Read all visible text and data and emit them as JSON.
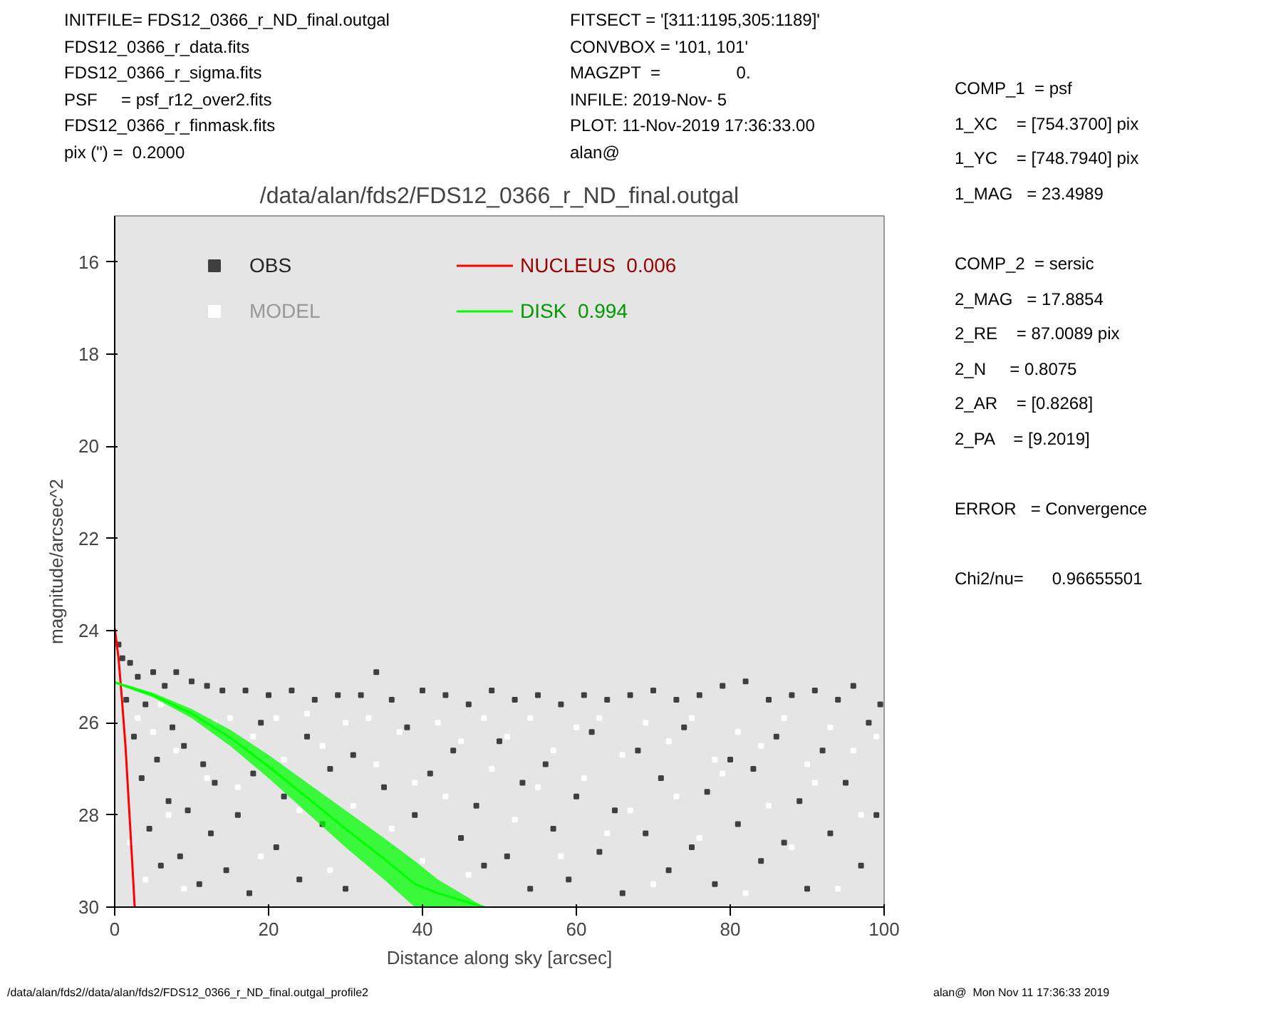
{
  "chart_data": {
    "type": "scatter",
    "title": "/data/alan/fds2/FDS12_0366_r_ND_final.outgal",
    "xlabel": "Distance along sky [arcsec]",
    "ylabel": "magnitude/arcsec^2",
    "xlim": [
      0,
      100
    ],
    "ylim": [
      30,
      15
    ],
    "xticks": [
      0,
      20,
      40,
      60,
      80,
      100
    ],
    "yticks": [
      16,
      18,
      20,
      22,
      24,
      26,
      28,
      30
    ],
    "grid": false,
    "legend": "top",
    "series": [
      {
        "name": "OBS",
        "marker": "square",
        "color": "#3f3f3f",
        "x": [
          0.5,
          1,
          1.5,
          2,
          2.5,
          3,
          3.5,
          4,
          4.5,
          5,
          5.5,
          6,
          6.5,
          7,
          7.5,
          8,
          8.5,
          9,
          9.5,
          10,
          11,
          11.5,
          12,
          12.5,
          13,
          14,
          14.5,
          16,
          17,
          17.5,
          18,
          19,
          20,
          21,
          22,
          23,
          24,
          25,
          26,
          27,
          28,
          29,
          30,
          31,
          32,
          34,
          35,
          36,
          38,
          39,
          40,
          41,
          43,
          44,
          45,
          46,
          47,
          48,
          49,
          50,
          51,
          52,
          53,
          54,
          55,
          56,
          57,
          58,
          59,
          60,
          61,
          62,
          63,
          64,
          65,
          66,
          67,
          68,
          69,
          70,
          71,
          72,
          73,
          74,
          75,
          76,
          77,
          78,
          79,
          80,
          81,
          82,
          83,
          84,
          85,
          86,
          87,
          88,
          89,
          90,
          91,
          92,
          93,
          94,
          95,
          96,
          97,
          98,
          99,
          99.5
        ],
        "values": [
          24.3,
          24.6,
          25.5,
          24.7,
          26.3,
          25.0,
          27.2,
          25.6,
          28.3,
          24.9,
          26.8,
          29.1,
          25.2,
          27.7,
          26.1,
          24.9,
          28.9,
          26.5,
          27.9,
          25.1,
          29.5,
          26.9,
          25.2,
          28.4,
          27.3,
          25.3,
          29.2,
          28.0,
          25.3,
          29.7,
          27.1,
          26.0,
          25.4,
          28.7,
          27.6,
          25.3,
          29.4,
          26.3,
          25.5,
          28.2,
          27.0,
          25.4,
          29.6,
          26.7,
          25.4,
          24.9,
          27.4,
          25.5,
          26.1,
          28.0,
          25.3,
          27.1,
          25.4,
          26.6,
          28.5,
          25.6,
          27.8,
          29.1,
          25.3,
          26.4,
          28.9,
          25.5,
          27.3,
          29.6,
          25.4,
          26.9,
          28.3,
          25.6,
          29.4,
          27.6,
          25.4,
          26.2,
          28.8,
          25.5,
          27.9,
          29.7,
          25.4,
          26.6,
          28.4,
          25.3,
          27.2,
          29.2,
          25.5,
          26.1,
          28.7,
          25.4,
          27.5,
          29.5,
          25.2,
          26.8,
          28.2,
          25.1,
          27.0,
          29.0,
          25.5,
          26.3,
          28.6,
          25.4,
          27.7,
          29.6,
          25.3,
          26.6,
          28.4,
          25.5,
          27.3,
          25.2,
          29.1,
          26.0,
          28.0,
          25.6
        ]
      },
      {
        "name": "MODEL",
        "marker": "square",
        "color": "#ffffff",
        "x": [
          1,
          2,
          3,
          4,
          5,
          6,
          7,
          8,
          9,
          12,
          13,
          15,
          16,
          18,
          19,
          21,
          22,
          24,
          25,
          27,
          28,
          30,
          31,
          33,
          34,
          36,
          37,
          39,
          40,
          42,
          43,
          45,
          46,
          48,
          49,
          51,
          52,
          54,
          55,
          57,
          58,
          60,
          61,
          63,
          64,
          66,
          67,
          69,
          70,
          72,
          73,
          75,
          76,
          78,
          79,
          81,
          82,
          84,
          85,
          87,
          88,
          90,
          91,
          93,
          94,
          96,
          97,
          99
        ],
        "values": [
          25.2,
          28.6,
          25.9,
          29.4,
          26.2,
          25.6,
          28.0,
          26.6,
          29.6,
          27.2,
          26.0,
          25.9,
          27.4,
          26.3,
          28.9,
          25.9,
          26.8,
          27.9,
          25.8,
          26.5,
          29.2,
          26.0,
          27.8,
          25.9,
          26.9,
          28.3,
          26.2,
          27.3,
          29.0,
          26.0,
          27.6,
          26.4,
          29.3,
          25.9,
          27.0,
          26.3,
          28.1,
          25.9,
          27.4,
          26.6,
          28.9,
          26.1,
          27.2,
          25.9,
          28.4,
          26.7,
          27.9,
          26.0,
          29.5,
          26.4,
          27.6,
          25.9,
          28.5,
          26.8,
          27.1,
          26.2,
          29.7,
          26.5,
          27.8,
          25.9,
          28.7,
          26.9,
          27.3,
          26.1,
          29.6,
          26.6,
          28.0,
          26.3
        ]
      },
      {
        "name": "NUCLEUS  0.006",
        "type": "line",
        "color": "#ff0000",
        "x": [
          0,
          0.5,
          0.9,
          1.4,
          1.8,
          2.2,
          2.6
        ],
        "values": [
          23.95,
          24.6,
          25.4,
          26.5,
          27.65,
          28.8,
          30.0
        ]
      },
      {
        "name": "DISK  0.994",
        "type": "line",
        "color": "#00ff00",
        "x": [
          0,
          5,
          10,
          15,
          20,
          25,
          30,
          35,
          39,
          42,
          45,
          48
        ],
        "values": [
          25.12,
          25.4,
          25.8,
          26.32,
          26.95,
          27.62,
          28.3,
          28.95,
          29.5,
          29.7,
          29.85,
          30.0
        ],
        "lower": [
          25.1,
          25.35,
          25.7,
          26.15,
          26.7,
          27.3,
          27.9,
          28.5,
          29.0,
          29.4,
          29.7,
          30.0
        ],
        "upper": [
          25.15,
          25.45,
          25.9,
          26.5,
          27.2,
          27.95,
          28.7,
          29.4,
          30.0,
          30.0,
          30.0,
          30.0
        ]
      }
    ],
    "annotations": [
      "INITFILE= FDS12_0366_r_ND_final.outgal\nFDS12_0366_r_data.fits\nFDS12_0366_r_sigma.fits\nPSF     = psf_r12_over2.fits\nFDS12_0366_r_finmask.fits\npix (\") =  0.2000",
      "FITSECT = '[311:1195,305:1189]'\nCONVBOX = '101, 101'\nMAGZPT  =                0.\nINFILE: 2019-Nov- 5\nPLOT: 11-Nov-2019 17:36:33.00\nalan@",
      "COMP_1  = psf\n1_XC    = [754.3700] pix\n1_YC    = [748.7940] pix\n1_MAG   = 23.4989\n\nCOMP_2  = sersic\n2_MAG   = 17.8854\n2_RE    = 87.0089 pix\n2_N     = 0.8075\n2_AR    = [0.8268]\n2_PA    = [9.2019]\n\nERROR   = Convergence\n\nChi2/nu=      0.96655501",
      "/data/alan/fds2//data/alan/fds2/FDS12_0366_r_ND_final.outgal_profile2",
      "alan@  Mon Nov 11 17:36:33 2019"
    ]
  }
}
